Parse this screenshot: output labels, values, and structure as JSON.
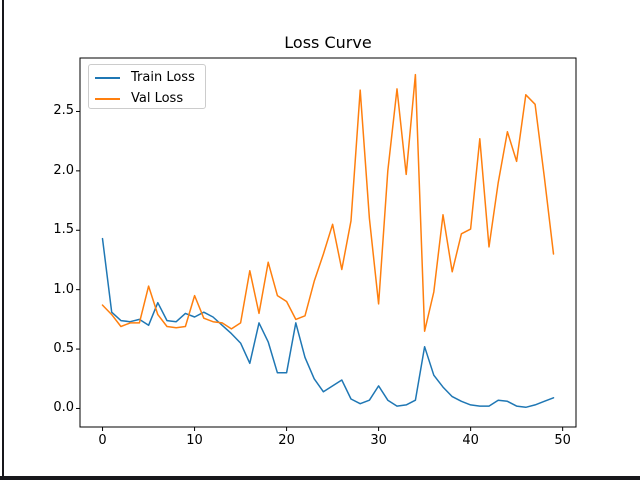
{
  "window": {
    "background": "#ffffff",
    "left_border_color": "#17171b",
    "bottom_bar_color": "#17171b"
  },
  "chart_data": {
    "type": "line",
    "title": "Loss Curve",
    "xlabel": "",
    "ylabel": "",
    "grid": false,
    "legend_position": "upper left",
    "xlim": [
      -2.45,
      51.45
    ],
    "ylim": [
      -0.156,
      2.95
    ],
    "x_ticks": [
      0,
      10,
      20,
      30,
      40,
      50
    ],
    "y_ticks": [
      "0.0",
      "0.5",
      "1.0",
      "1.5",
      "2.0",
      "2.5"
    ],
    "y_tick_values": [
      0,
      0.5,
      1.0,
      1.5,
      2.0,
      2.5
    ],
    "x": [
      0,
      1,
      2,
      3,
      4,
      5,
      6,
      7,
      8,
      9,
      10,
      11,
      12,
      13,
      14,
      15,
      16,
      17,
      18,
      19,
      20,
      21,
      22,
      23,
      24,
      25,
      26,
      27,
      28,
      29,
      30,
      31,
      32,
      33,
      34,
      35,
      36,
      37,
      38,
      39,
      40,
      41,
      42,
      43,
      44,
      45,
      46,
      47,
      48,
      49
    ],
    "series": [
      {
        "name": "Train Loss",
        "color": "#1f77b4",
        "values": [
          1.43,
          0.81,
          0.74,
          0.73,
          0.75,
          0.7,
          0.89,
          0.74,
          0.73,
          0.8,
          0.77,
          0.81,
          0.77,
          0.7,
          0.63,
          0.55,
          0.38,
          0.72,
          0.56,
          0.3,
          0.3,
          0.72,
          0.43,
          0.25,
          0.14,
          0.19,
          0.24,
          0.08,
          0.04,
          0.07,
          0.19,
          0.07,
          0.02,
          0.03,
          0.07,
          0.52,
          0.28,
          0.18,
          0.1,
          0.06,
          0.03,
          0.02,
          0.02,
          0.07,
          0.06,
          0.02,
          0.01,
          0.03,
          0.06,
          0.09
        ]
      },
      {
        "name": "Val Loss",
        "color": "#ff7f0e",
        "values": [
          0.87,
          0.79,
          0.69,
          0.72,
          0.72,
          1.03,
          0.79,
          0.69,
          0.68,
          0.69,
          0.95,
          0.76,
          0.73,
          0.72,
          0.67,
          0.72,
          1.16,
          0.8,
          1.23,
          0.95,
          0.9,
          0.75,
          0.78,
          1.07,
          1.3,
          1.55,
          1.17,
          1.58,
          2.68,
          1.6,
          0.88,
          2.0,
          2.69,
          1.97,
          2.81,
          0.65,
          0.98,
          1.63,
          1.15,
          1.47,
          1.51,
          2.27,
          1.36,
          1.9,
          2.33,
          2.08,
          2.64,
          2.56,
          1.95,
          1.3
        ]
      }
    ]
  }
}
